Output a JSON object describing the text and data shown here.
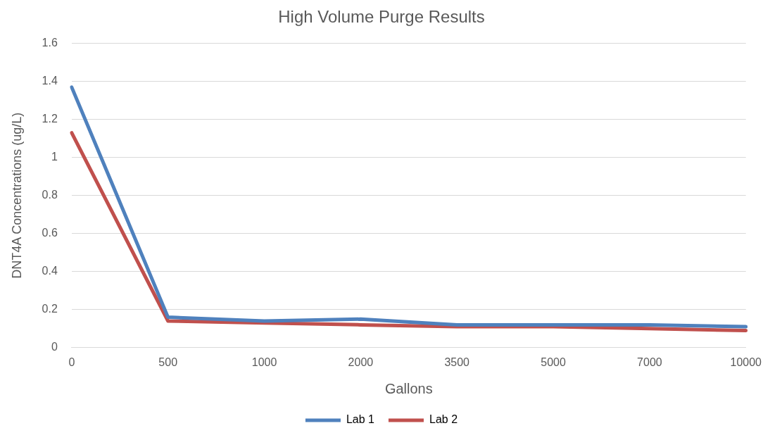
{
  "chart_data": {
    "type": "line",
    "title": "High Volume Purge Results",
    "xlabel": "Gallons",
    "ylabel": "DNT4A Concentrations (ug/L)",
    "categories": [
      "0",
      "500",
      "1000",
      "2000",
      "3500",
      "5000",
      "7000",
      "10000"
    ],
    "series": [
      {
        "name": "Lab 1",
        "color": "#4f81bd",
        "values": [
          1.37,
          0.16,
          0.14,
          0.15,
          0.12,
          0.12,
          0.12,
          0.11
        ]
      },
      {
        "name": "Lab 2",
        "color": "#c0504d",
        "values": [
          1.13,
          0.14,
          0.13,
          0.12,
          0.11,
          0.11,
          0.1,
          0.09
        ]
      }
    ],
    "ylim": [
      0,
      1.6
    ],
    "yticks": [
      0,
      0.2,
      0.4,
      0.6,
      0.8,
      1,
      1.2,
      1.4,
      1.6
    ],
    "grid": "y",
    "legend": "bottom",
    "marker": "none",
    "line_style": "solid"
  }
}
